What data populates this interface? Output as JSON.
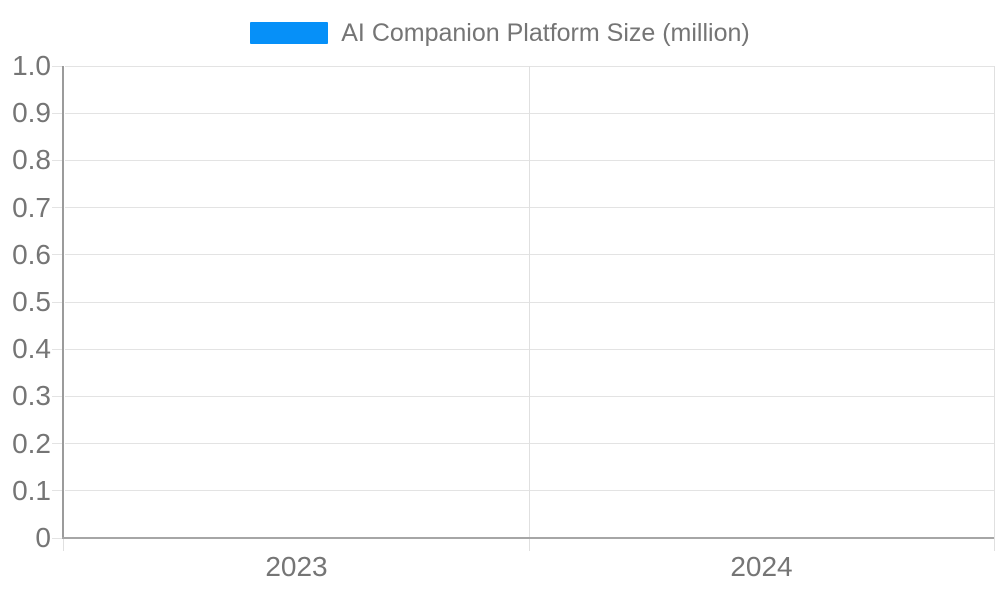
{
  "legend": {
    "label": "AI Companion Platform Size (million)",
    "swatch_color": "#0690f8"
  },
  "chart_data": {
    "type": "bar",
    "title": "AI Companion Platform Size (million)",
    "categories": [
      "2023",
      "2024"
    ],
    "series": [
      {
        "name": "AI Companion Platform Size (million)",
        "color": "#0690f8",
        "values": [
          0,
          0
        ]
      }
    ],
    "xlabel": "",
    "ylabel": "",
    "ylim": [
      0,
      1.0
    ],
    "y_tick_labels": [
      "1.0",
      "0.9",
      "0.8",
      "0.7",
      "0.6",
      "0.5",
      "0.4",
      "0.3",
      "0.2",
      "0.1",
      "0"
    ],
    "grid": true,
    "legend_position": "top-center",
    "bars_visible": false
  },
  "colors": {
    "series": "#0690f8",
    "tick_text": "#757575",
    "legend_text": "#757575",
    "gridline": "#e3e3e3",
    "y_axis_line": "#9b9b9b",
    "x_axis_line": "#a6a6a6",
    "background": "#ffffff"
  }
}
